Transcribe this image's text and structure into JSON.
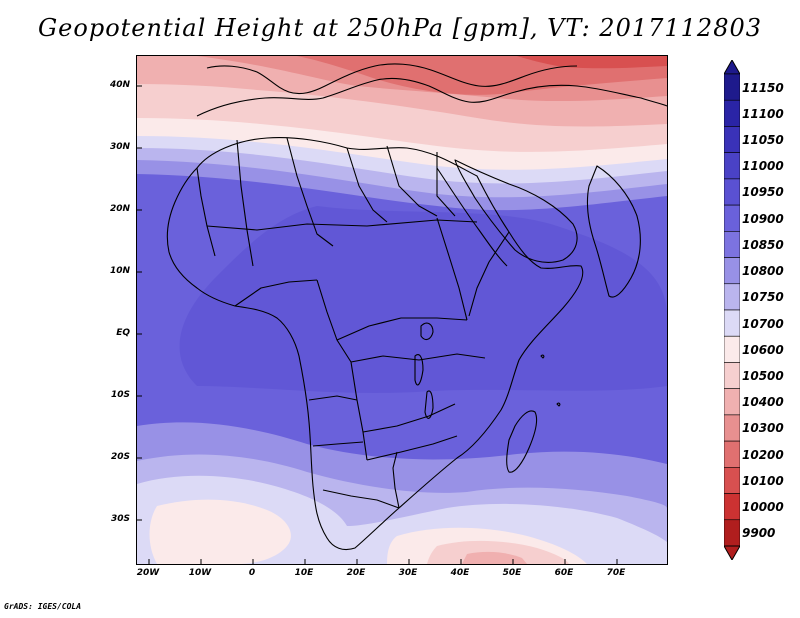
{
  "title": "Geopotential Height at 250hPa [gpm], VT: 2017112803",
  "credit": "GrADS: IGES/COLA",
  "lat_ticks": [
    "40N",
    "30N",
    "20N",
    "10N",
    "EQ",
    "10S",
    "20S",
    "30S"
  ],
  "lon_ticks": [
    "20W",
    "10W",
    "0",
    "10E",
    "20E",
    "30E",
    "40E",
    "50E",
    "60E",
    "70E"
  ],
  "colorbar": {
    "labels": [
      "11150",
      "11100",
      "11050",
      "11000",
      "10950",
      "10900",
      "10850",
      "10800",
      "10750",
      "10700",
      "10600",
      "10500",
      "10400",
      "10300",
      "10200",
      "10100",
      "10000",
      "9900"
    ],
    "colors": [
      "#1e1a8c",
      "#2a24a6",
      "#3a32b8",
      "#4a42c6",
      "#5a51d2",
      "#6a61db",
      "#7c73e0",
      "#9891e6",
      "#bab5ee",
      "#dcdaf6",
      "#fbeaea",
      "#f6cfcf",
      "#f0b0b0",
      "#e89090",
      "#e07070",
      "#d85050",
      "#cc3232",
      "#b01e1e"
    ]
  },
  "map": {
    "variable": "Geopotential Height",
    "level": "250hPa",
    "units": "gpm",
    "valid_time": "2017112803"
  }
}
